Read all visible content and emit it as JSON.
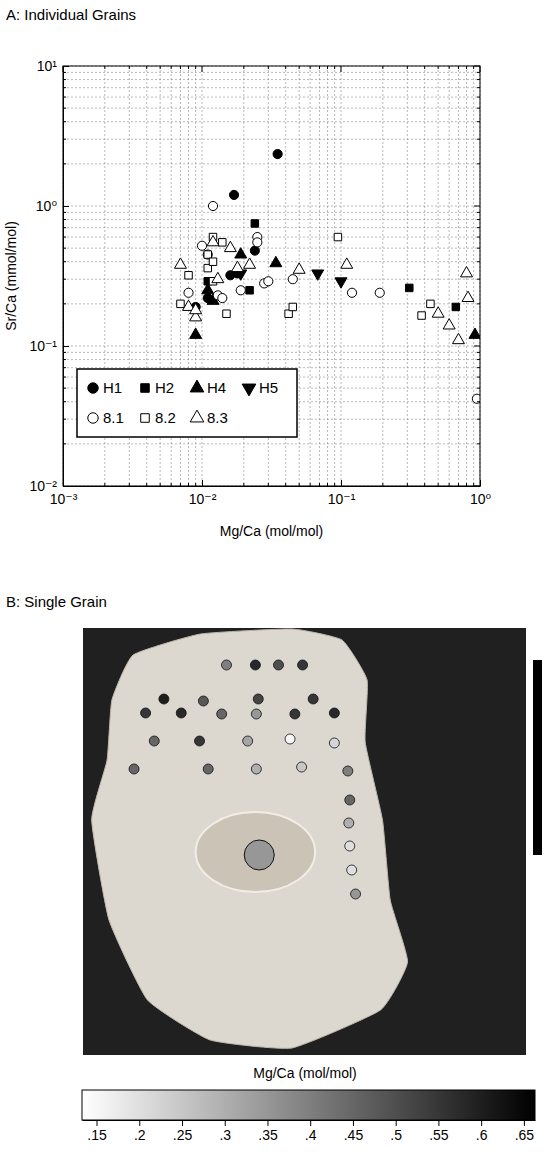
{
  "chart_data": [
    {
      "type": "scatter",
      "title": "A: Individual Grains",
      "x_label": "Mg/Ca (mol/mol)",
      "y_label": "Sr/Ca (mmol/mol)",
      "log": true,
      "grid": true,
      "legend": "lower left",
      "xlim": [
        0.001,
        1
      ],
      "ylim": [
        0.01,
        10
      ],
      "xticks": [
        {
          "value": 0.001,
          "label": "10⁻³"
        },
        {
          "value": 0.01,
          "label": "10⁻²"
        },
        {
          "value": 0.1,
          "label": "10⁻¹"
        },
        {
          "value": 1,
          "label": "10⁰"
        }
      ],
      "yticks": [
        {
          "value": 0.01,
          "label": "10⁻²"
        },
        {
          "value": 0.1,
          "label": "10⁻¹"
        },
        {
          "value": 1,
          "label": "10⁰"
        },
        {
          "value": 10,
          "label": "10¹"
        }
      ],
      "x_minor_ticks": [
        0.002,
        0.003,
        0.004,
        0.005,
        0.006,
        0.007,
        0.008,
        0.009,
        0.02,
        0.03,
        0.04,
        0.05,
        0.06,
        0.07,
        0.08,
        0.09,
        0.2,
        0.3,
        0.4,
        0.5,
        0.6,
        0.7,
        0.8,
        0.9
      ],
      "y_minor_ticks": [
        0.02,
        0.03,
        0.04,
        0.05,
        0.06,
        0.07,
        0.08,
        0.09,
        0.2,
        0.3,
        0.4,
        0.5,
        0.6,
        0.7,
        0.8,
        0.9,
        2,
        3,
        4,
        5,
        6,
        7,
        8,
        9
      ],
      "series": [
        {
          "name": "H1",
          "marker": "circle",
          "color": "#000000",
          "x": [
            0.035,
            0.017,
            0.024,
            0.016,
            0.009,
            0.011,
            0.018
          ],
          "values": [
            2.35,
            1.2,
            0.48,
            0.32,
            0.19,
            0.22,
            0.33
          ]
        },
        {
          "name": "H2",
          "marker": "square",
          "color": "#000000",
          "x": [
            0.024,
            0.011,
            0.022,
            0.31,
            0.67
          ],
          "values": [
            0.75,
            0.29,
            0.25,
            0.26,
            0.19
          ]
        },
        {
          "name": "H4",
          "marker": "triangle-up",
          "color": "#000000",
          "x": [
            0.009,
            0.012,
            0.019,
            0.034,
            0.92,
            0.011
          ],
          "values": [
            0.12,
            0.21,
            0.45,
            0.39,
            0.12,
            0.25
          ]
        },
        {
          "name": "H5",
          "marker": "triangle-down",
          "color": "#000000",
          "x": [
            0.019,
            0.068,
            0.1
          ],
          "values": [
            0.33,
            0.33,
            0.29
          ]
        },
        {
          "name": "8.1",
          "marker": "circle-open",
          "color": "#000000",
          "x": [
            0.012,
            0.01,
            0.008,
            0.013,
            0.025,
            0.025,
            0.019,
            0.028,
            0.03,
            0.045,
            0.12,
            0.19,
            0.95,
            0.011,
            0.014
          ],
          "values": [
            1,
            0.52,
            0.24,
            0.23,
            0.6,
            0.55,
            0.25,
            0.28,
            0.29,
            0.3,
            0.24,
            0.24,
            0.042,
            0.45,
            0.22
          ]
        },
        {
          "name": "8.2",
          "marker": "square-open",
          "color": "#000000",
          "x": [
            0.007,
            0.008,
            0.012,
            0.011,
            0.011,
            0.014,
            0.012,
            0.015,
            0.012,
            0.042,
            0.045,
            0.095,
            0.38,
            0.44
          ],
          "values": [
            0.2,
            0.32,
            0.6,
            0.45,
            0.36,
            0.55,
            0.4,
            0.17,
            0.29,
            0.17,
            0.19,
            0.6,
            0.165,
            0.2
          ]
        },
        {
          "name": "8.3",
          "marker": "triangle-up-open",
          "color": "#000000",
          "x": [
            0.007,
            0.008,
            0.009,
            0.012,
            0.016,
            0.018,
            0.022,
            0.05,
            0.11,
            0.5,
            0.6,
            0.7,
            0.8,
            0.82,
            0.013,
            0.009
          ],
          "values": [
            0.38,
            0.19,
            0.16,
            0.55,
            0.5,
            0.36,
            0.38,
            0.35,
            0.38,
            0.17,
            0.14,
            0.11,
            0.33,
            0.22,
            0.3,
            0.18
          ]
        }
      ]
    },
    {
      "type": "spot_map",
      "title": "B: Single Grain",
      "spot_values": [
        0.4,
        0.58,
        0.5,
        0.55,
        0.6,
        0.48,
        0.52,
        0.55,
        0.55,
        0.58,
        0.45,
        0.35,
        0.55,
        0.58,
        0.45,
        0.55,
        0.32,
        0.15,
        0.22,
        0.45,
        0.45,
        0.3,
        0.25,
        0.4,
        0.45,
        0.3,
        0.2,
        0.2,
        0.35
      ],
      "large_spot_value": 0.35,
      "colorbar": {
        "label": "Mg/Ca (mol/mol)",
        "range": [
          0.133,
          0.663
        ],
        "ticks": [
          {
            "value": 0.15,
            "label": ".15"
          },
          {
            "value": 0.2,
            "label": ".2"
          },
          {
            "value": 0.25,
            "label": ".25"
          },
          {
            "value": 0.3,
            "label": ".3"
          },
          {
            "value": 0.35,
            "label": ".35"
          },
          {
            "value": 0.4,
            "label": ".4"
          },
          {
            "value": 0.45,
            "label": ".45"
          },
          {
            "value": 0.5,
            "label": ".5"
          },
          {
            "value": 0.55,
            "label": ".55"
          },
          {
            "value": 0.6,
            "label": ".6"
          },
          {
            "value": 0.65,
            "label": ".65"
          }
        ]
      }
    }
  ]
}
